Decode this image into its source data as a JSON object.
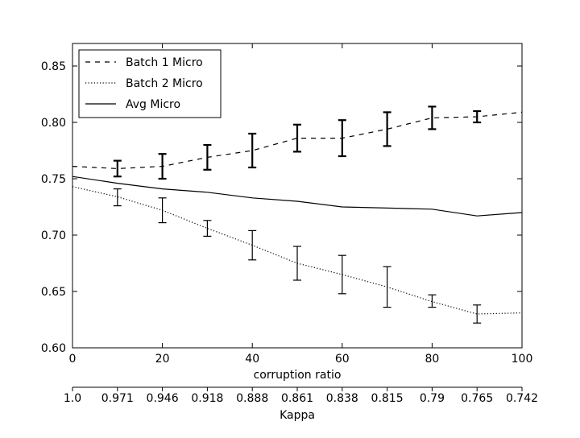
{
  "chart_data": {
    "type": "line",
    "title": "",
    "xlabel": "corruption ratio",
    "ylabel": "",
    "secondary_xlabel": "Kappa",
    "x": [
      0,
      10,
      20,
      30,
      40,
      50,
      60,
      70,
      80,
      90,
      100
    ],
    "xlim": [
      0,
      100
    ],
    "ylim": [
      0.6,
      0.87
    ],
    "x_ticks": [
      0,
      20,
      40,
      60,
      80,
      100
    ],
    "x_tick_labels": [
      "0",
      "20",
      "40",
      "60",
      "80",
      "100"
    ],
    "y_ticks": [
      0.6,
      0.65,
      0.7,
      0.75,
      0.8,
      0.85
    ],
    "y_tick_labels": [
      "0.60",
      "0.65",
      "0.70",
      "0.75",
      "0.80",
      "0.85"
    ],
    "kappa_ticks": [
      0,
      10,
      20,
      30,
      40,
      50,
      60,
      70,
      80,
      90,
      100
    ],
    "kappa_tick_labels": [
      "1.0",
      "0.971",
      "0.946",
      "0.918",
      "0.888",
      "0.861",
      "0.838",
      "0.815",
      "0.79",
      "0.765",
      "0.742"
    ],
    "grid": false,
    "legend_position": "top-left",
    "series": [
      {
        "name": "Batch 1 Micro",
        "style": "dashed",
        "values": [
          0.761,
          0.759,
          0.761,
          0.769,
          0.775,
          0.786,
          0.786,
          0.794,
          0.804,
          0.805,
          0.809
        ],
        "error_x": [
          10,
          20,
          30,
          40,
          50,
          60,
          70,
          80,
          90
        ],
        "error_low": [
          0.752,
          0.75,
          0.758,
          0.76,
          0.774,
          0.77,
          0.779,
          0.794,
          0.8
        ],
        "error_high": [
          0.766,
          0.772,
          0.78,
          0.79,
          0.798,
          0.802,
          0.809,
          0.814,
          0.81
        ],
        "error_width": "thick"
      },
      {
        "name": "Batch 2 Micro",
        "style": "dotted",
        "values": [
          0.743,
          0.734,
          0.722,
          0.706,
          0.691,
          0.675,
          0.665,
          0.654,
          0.641,
          0.63,
          0.631
        ],
        "error_x": [
          10,
          20,
          30,
          40,
          50,
          60,
          70,
          80,
          90
        ],
        "error_low": [
          0.726,
          0.711,
          0.699,
          0.678,
          0.66,
          0.648,
          0.636,
          0.636,
          0.622
        ],
        "error_high": [
          0.741,
          0.733,
          0.713,
          0.704,
          0.69,
          0.682,
          0.672,
          0.647,
          0.638
        ],
        "error_width": "thin"
      },
      {
        "name": "Avg Micro",
        "style": "solid",
        "values": [
          0.752,
          0.746,
          0.741,
          0.738,
          0.733,
          0.73,
          0.725,
          0.724,
          0.723,
          0.717,
          0.72
        ]
      }
    ]
  }
}
